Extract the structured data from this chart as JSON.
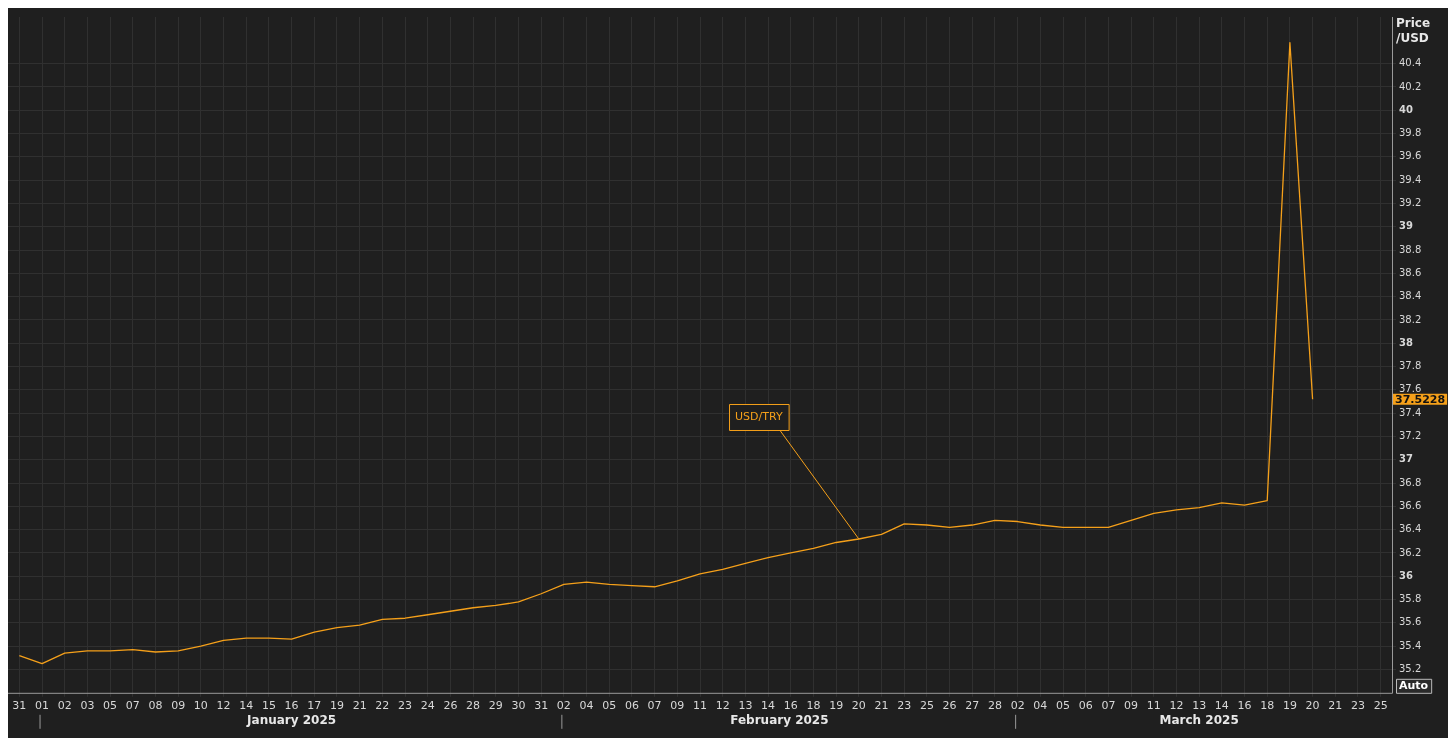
{
  "chart_data": {
    "type": "line",
    "ylabel": "Price /USD",
    "categories": [
      "31",
      "01",
      "02",
      "03",
      "05",
      "07",
      "08",
      "09",
      "10",
      "12",
      "14",
      "15",
      "16",
      "17",
      "19",
      "21",
      "22",
      "23",
      "24",
      "26",
      "28",
      "29",
      "30",
      "31",
      "02",
      "04",
      "05",
      "06",
      "07",
      "09",
      "11",
      "12",
      "13",
      "14",
      "16",
      "18",
      "19",
      "20",
      "21",
      "23",
      "25",
      "26",
      "27",
      "28",
      "02",
      "04",
      "05",
      "06",
      "07",
      "09",
      "11",
      "12",
      "13",
      "14",
      "16",
      "18",
      "19",
      "20",
      "21",
      "23",
      "25"
    ],
    "series": [
      {
        "name": "USD/TRY",
        "color": "#f5a01a",
        "values": [
          35.32,
          35.25,
          35.34,
          35.36,
          35.36,
          35.37,
          35.35,
          35.36,
          35.4,
          35.45,
          35.47,
          35.47,
          35.46,
          35.52,
          35.56,
          35.58,
          35.63,
          35.64,
          35.67,
          35.7,
          35.73,
          35.75,
          35.78,
          35.85,
          35.93,
          35.95,
          35.93,
          35.92,
          35.91,
          35.96,
          36.02,
          36.06,
          36.11,
          36.16,
          36.2,
          36.24,
          36.29,
          36.32,
          36.36,
          36.45,
          36.44,
          36.42,
          36.44,
          36.48,
          36.47,
          36.44,
          36.42,
          36.42,
          36.42,
          36.48,
          36.54,
          36.57,
          36.59,
          36.63,
          36.61,
          36.65,
          40.58,
          37.52,
          null,
          null,
          null
        ]
      }
    ],
    "ylim": [
      35.0,
      40.8
    ],
    "yticks": [
      35.2,
      35.4,
      35.6,
      35.8,
      36,
      36.2,
      36.4,
      36.6,
      36.8,
      37,
      37.2,
      37.4,
      37.6,
      37.8,
      38,
      38.2,
      38.4,
      38.6,
      38.8,
      39,
      39.2,
      39.4,
      39.6,
      39.8,
      40,
      40.2,
      40.4
    ],
    "grid": true,
    "legend": false,
    "annotations": [
      "January 2025",
      "February 2025",
      "March 2025",
      "37.5228",
      "Auto"
    ]
  }
}
